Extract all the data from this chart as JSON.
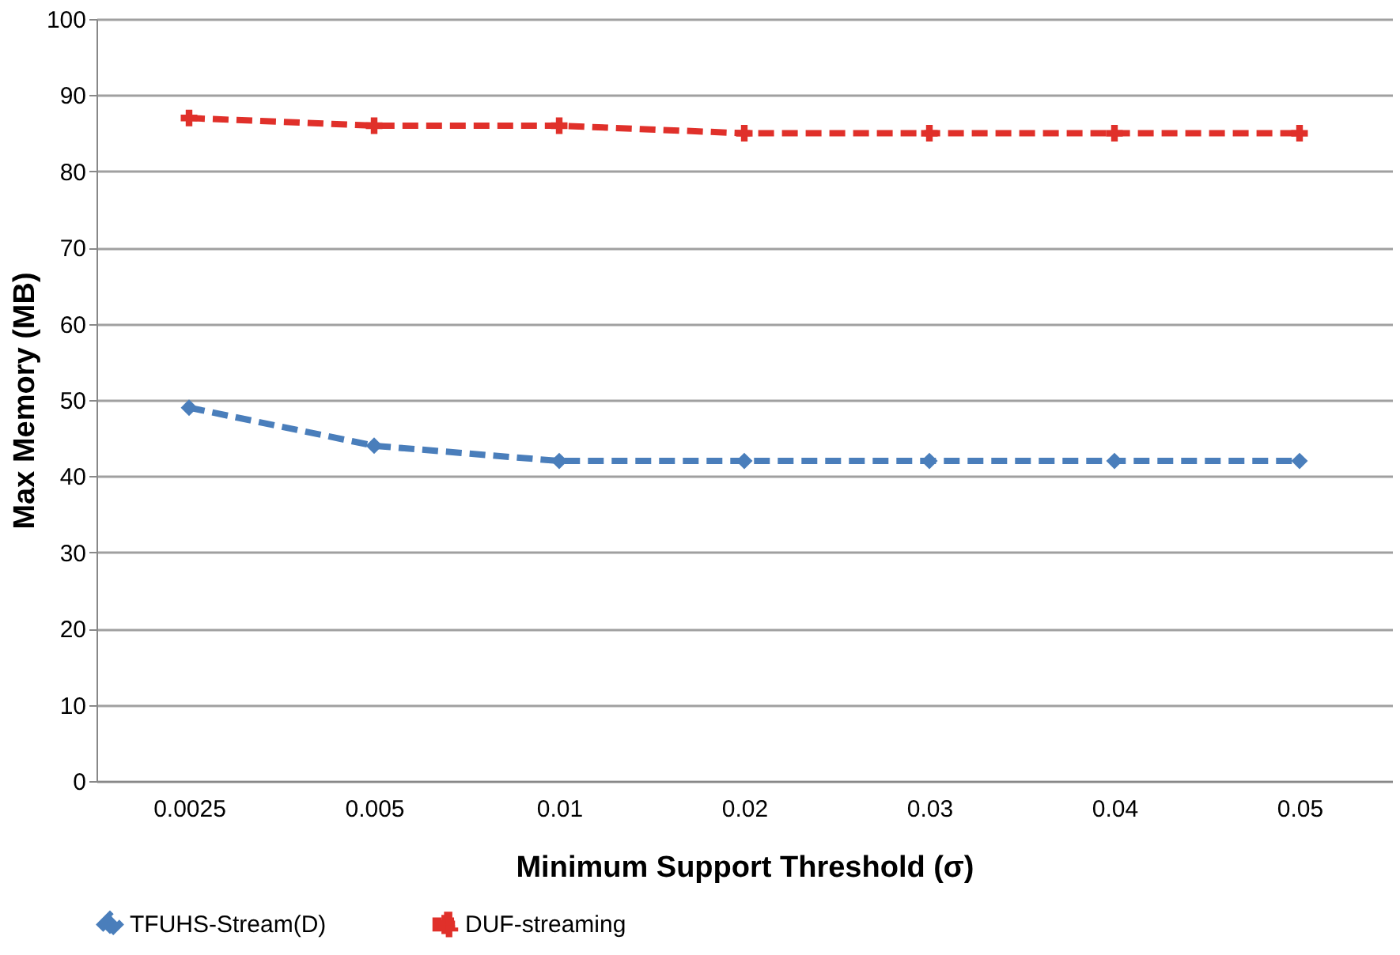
{
  "chart_data": {
    "type": "line",
    "xlabel": "Minimum Support Threshold (σ)",
    "ylabel": "Max Memory (MB)",
    "categories": [
      "0.0025",
      "0.005",
      "0.01",
      "0.02",
      "0.03",
      "0.04",
      "0.05"
    ],
    "series": [
      {
        "name": "TFUHS-Stream(D)",
        "color": "#4a7ebb",
        "values": [
          49,
          44,
          42,
          42,
          42,
          42,
          42
        ],
        "marker": "diamond",
        "line_style": "dashed"
      },
      {
        "name": "DUF-streaming",
        "color": "#e0302a",
        "values": [
          87,
          86,
          86,
          85,
          85,
          85,
          85
        ],
        "marker": "cross",
        "line_style": "dashed"
      }
    ],
    "ylim": [
      0,
      100
    ],
    "yticks": [
      0,
      10,
      20,
      30,
      40,
      50,
      60,
      70,
      80,
      90,
      100
    ],
    "grid": "y",
    "legend": "bottom"
  }
}
